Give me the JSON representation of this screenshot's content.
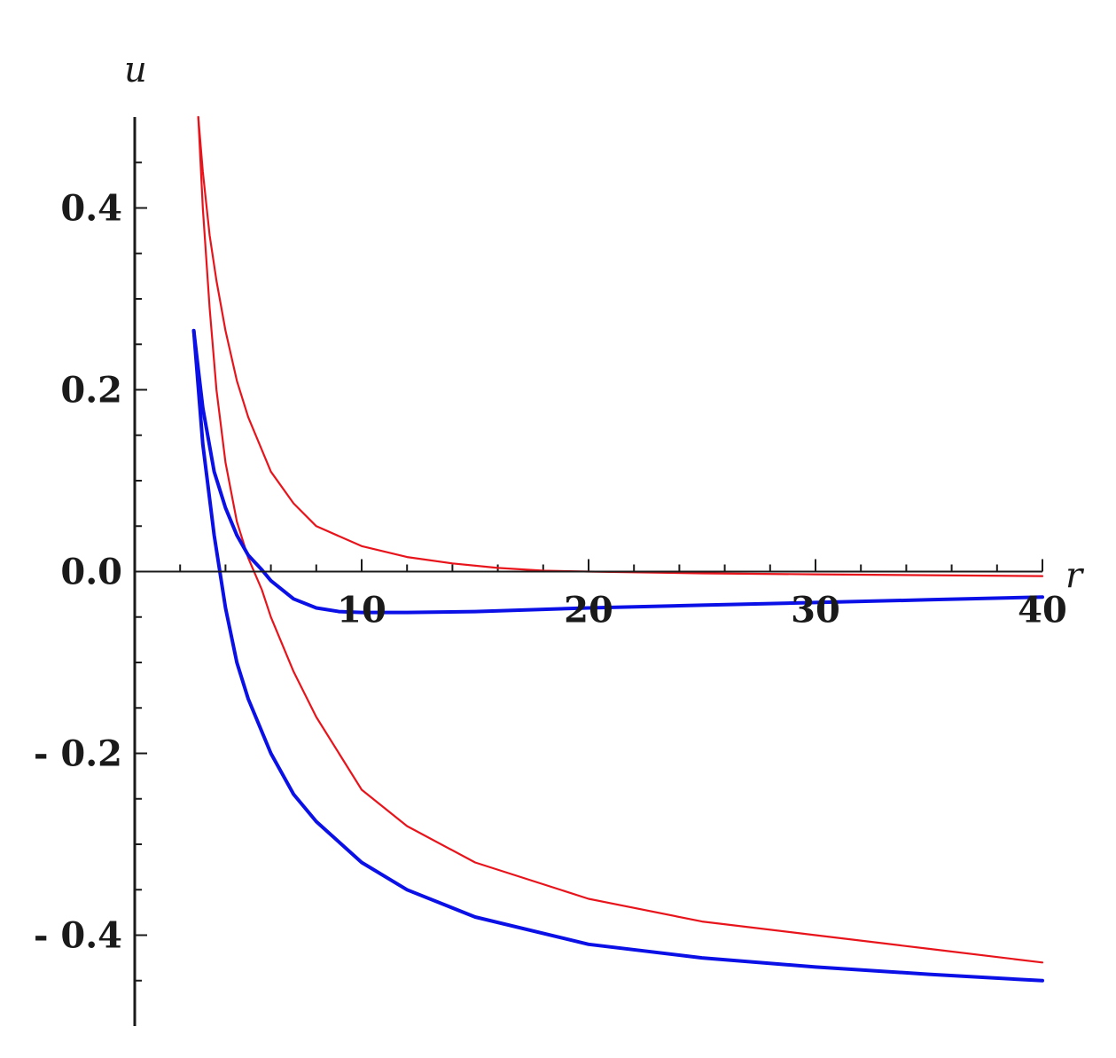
{
  "chart_data": {
    "type": "line",
    "xlabel": "r",
    "ylabel": "u",
    "xlim": [
      0,
      40
    ],
    "ylim": [
      -0.5,
      0.5
    ],
    "x_ticks": [
      10,
      20,
      30,
      40
    ],
    "x_tick_labels": [
      "10",
      "20",
      "30",
      "40"
    ],
    "y_ticks": [
      0.4,
      0.2,
      0.0,
      -0.2,
      -0.4
    ],
    "y_tick_labels": [
      "0.4",
      "0.2",
      "0.0",
      "- 0.2",
      "- 0.4"
    ],
    "grid": false,
    "legend": "none",
    "series": [
      {
        "color": "#e8141c",
        "stroke": "thin",
        "x": [
          2.8,
          3.0,
          3.3,
          3.6,
          4.0,
          4.5,
          5.0,
          6.0,
          7.0,
          8.0,
          10.0,
          12.0,
          14.0,
          16.0,
          18.0,
          20.0,
          25.0,
          30.0,
          35.0,
          40.0
        ],
        "y": [
          0.5,
          0.44,
          0.37,
          0.32,
          0.265,
          0.21,
          0.17,
          0.11,
          0.075,
          0.05,
          0.028,
          0.016,
          0.009,
          0.004,
          0.001,
          0.0,
          -0.002,
          -0.003,
          -0.004,
          -0.005
        ]
      },
      {
        "color": "#e8141c",
        "stroke": "thin",
        "x": [
          2.8,
          3.0,
          3.3,
          3.6,
          4.0,
          4.5,
          5.0,
          5.6,
          6.0,
          7.0,
          8.0,
          10.0,
          12.0,
          15.0,
          20.0,
          25.0,
          30.0,
          35.0,
          40.0
        ],
        "y": [
          0.5,
          0.4,
          0.29,
          0.2,
          0.12,
          0.055,
          0.015,
          -0.02,
          -0.05,
          -0.11,
          -0.16,
          -0.24,
          -0.28,
          -0.32,
          -0.36,
          -0.385,
          -0.4,
          -0.415,
          -0.43
        ]
      },
      {
        "color": "#0a10e6",
        "stroke": "thick",
        "x": [
          2.6,
          3.0,
          3.5,
          4.0,
          4.5,
          5.0,
          5.6,
          6.0,
          7.0,
          8.0,
          9.0,
          10.0,
          12.0,
          15.0,
          20.0,
          25.0,
          30.0,
          35.0,
          40.0
        ],
        "y": [
          0.265,
          0.18,
          0.11,
          0.07,
          0.04,
          0.018,
          0.002,
          -0.01,
          -0.03,
          -0.04,
          -0.044,
          -0.045,
          -0.045,
          -0.044,
          -0.04,
          -0.037,
          -0.034,
          -0.031,
          -0.028
        ]
      },
      {
        "color": "#0a10e6",
        "stroke": "thick",
        "x": [
          2.6,
          3.0,
          3.5,
          4.0,
          4.5,
          5.0,
          6.0,
          7.0,
          8.0,
          10.0,
          12.0,
          15.0,
          20.0,
          25.0,
          30.0,
          35.0,
          40.0
        ],
        "y": [
          0.265,
          0.14,
          0.04,
          -0.04,
          -0.1,
          -0.14,
          -0.2,
          -0.245,
          -0.275,
          -0.32,
          -0.35,
          -0.38,
          -0.41,
          -0.425,
          -0.435,
          -0.443,
          -0.45
        ]
      }
    ]
  }
}
